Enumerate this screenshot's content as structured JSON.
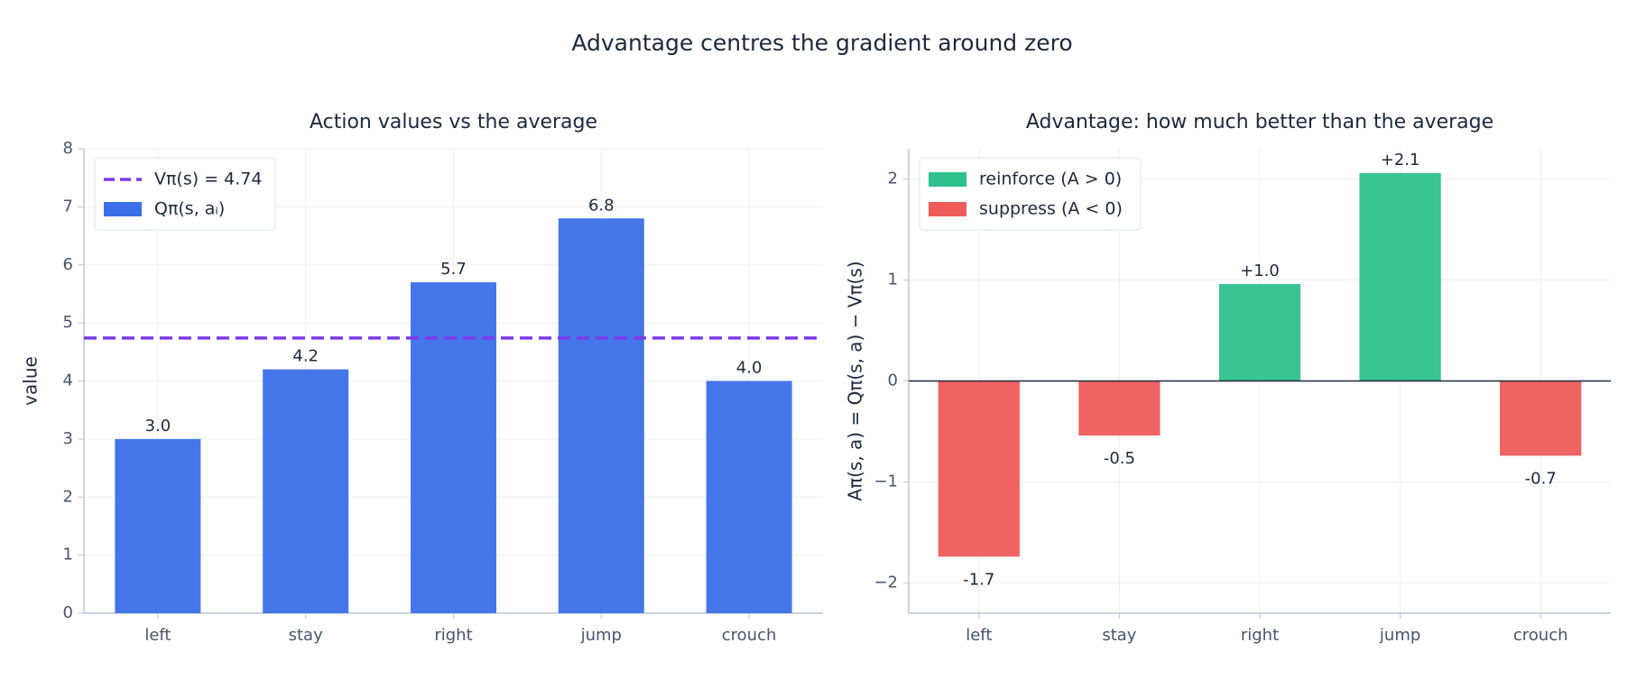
{
  "title": "Advantage centres the gradient around zero",
  "chart_data": [
    {
      "type": "bar",
      "title": "Action values vs the average",
      "ylabel": "value",
      "categories": [
        "left",
        "stay",
        "right",
        "jump",
        "crouch"
      ],
      "values": [
        3.0,
        4.2,
        5.7,
        6.8,
        4.0
      ],
      "value_labels": [
        "3.0",
        "4.2",
        "5.7",
        "6.8",
        "4.0"
      ],
      "color": "#3b6fe8",
      "series_name": "Qπ(s, aᵢ)",
      "hline": {
        "value": 4.74,
        "name": "Vπ(s) = 4.74",
        "color": "#7c3aed"
      },
      "ylim": [
        0,
        8
      ],
      "yticks": [
        0,
        1,
        2,
        3,
        4,
        5,
        6,
        7,
        8
      ],
      "grid": true,
      "legend": "upper left"
    },
    {
      "type": "bar",
      "title": "Advantage: how much better than the average",
      "ylabel": "Aπ(s, a) = Qπ(s, a) − Vπ(s)",
      "categories": [
        "left",
        "stay",
        "right",
        "jump",
        "crouch"
      ],
      "values": [
        -1.74,
        -0.54,
        0.96,
        2.06,
        -0.74
      ],
      "value_labels": [
        "-1.7",
        "-0.5",
        "+1.0",
        "+2.1",
        "-0.7"
      ],
      "colors": [
        "#ef5b5b",
        "#ef5b5b",
        "#2ec18d",
        "#2ec18d",
        "#ef5b5b"
      ],
      "legend_entries": [
        {
          "name": "reinforce  (A > 0)",
          "color": "#2ec18d"
        },
        {
          "name": "suppress   (A < 0)",
          "color": "#ef5b5b"
        }
      ],
      "ylim": [
        -2.3,
        2.3
      ],
      "yticks": [
        {
          "value": -2,
          "label": "−2"
        },
        {
          "value": -1,
          "label": "−1"
        },
        0,
        1,
        2
      ],
      "zero_line": true,
      "grid": true,
      "legend": "upper left"
    }
  ]
}
